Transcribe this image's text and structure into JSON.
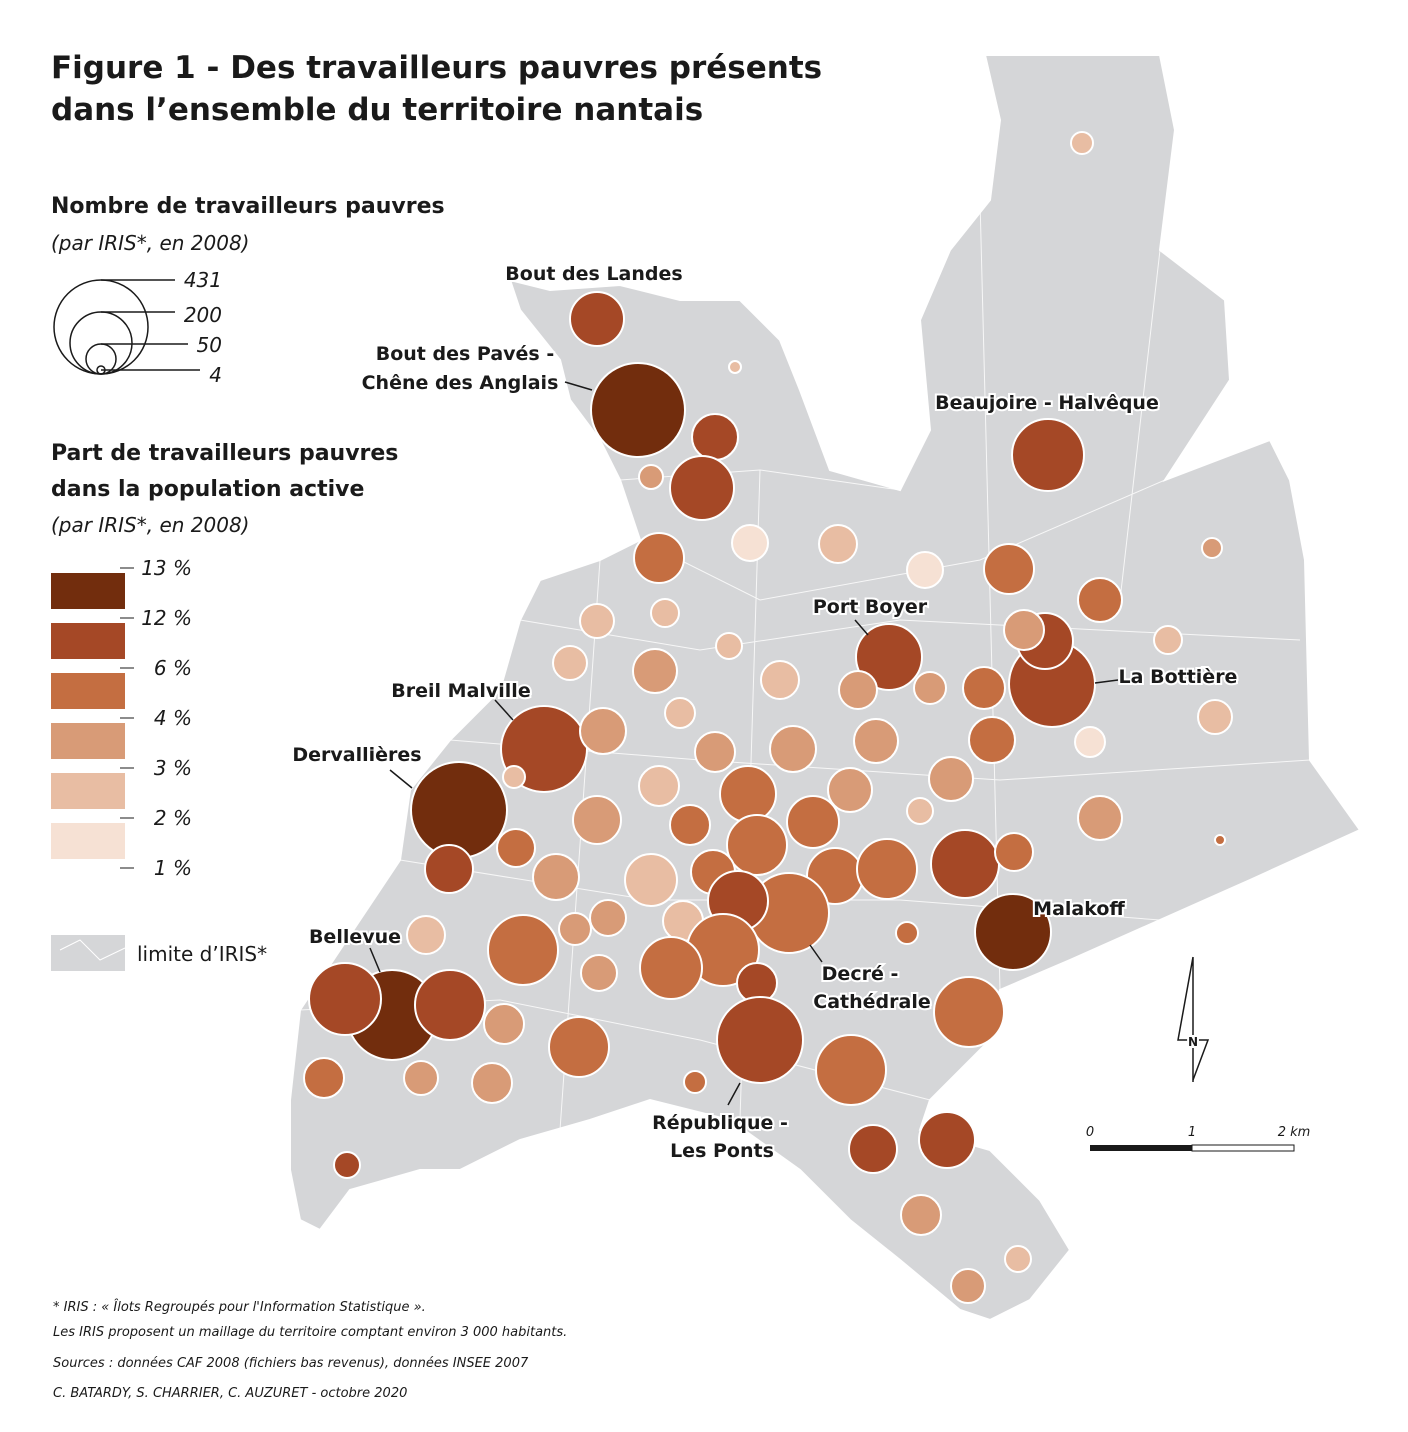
{
  "header": {
    "title": [
      "Figure 1  - Des travailleurs pauvres présents",
      "dans l’ensemble du territoire nantais"
    ]
  },
  "legend_size": {
    "title": "Nombre de travailleurs pauvres",
    "subtitle": " (par IRIS*, en 2008)",
    "labels": [
      "431",
      "200",
      "50",
      "4"
    ]
  },
  "legend_color": {
    "title": [
      "Part de travailleurs pauvres",
      "dans la population active"
    ],
    "subtitle": "(par IRIS*, en 2008)",
    "labels": [
      "13 %",
      "12 %",
      "6 %",
      "4 %",
      "3 %",
      "2 %",
      "1 %"
    ],
    "colors": [
      "#722d0d",
      "#a54826",
      "#c46e41",
      "#d89b77",
      "#e8bda3",
      "#f6e1d4"
    ]
  },
  "legend_iris": {
    "label": "limite d’IRIS*"
  },
  "places": [
    "Bout des Landes",
    "Bout des Pavés -",
    "Chêne des Anglais",
    "Beaujoire - Halvêque",
    "Port Boyer",
    "La Bottière",
    "Breil Malville",
    "Dervallières",
    "Malakoff",
    "Bellevue",
    "Decré -",
    "Cathédrale",
    "République -",
    "Les Ponts"
  ],
  "north": "N",
  "scale": [
    "0",
    "1",
    "2 km"
  ],
  "footnotes": [
    "* IRIS : « Îlots Regroupés pour l'Information Statistique ».",
    "Les IRIS proposent un maillage du territoire comptant environ 3 000 habitants.",
    "Sources : données CAF 2008 (fichiers bas revenus), données INSEE 2007",
    "C. BATARDY, S. CHARRIER, C. AUZURET -  octobre 2020"
  ]
}
